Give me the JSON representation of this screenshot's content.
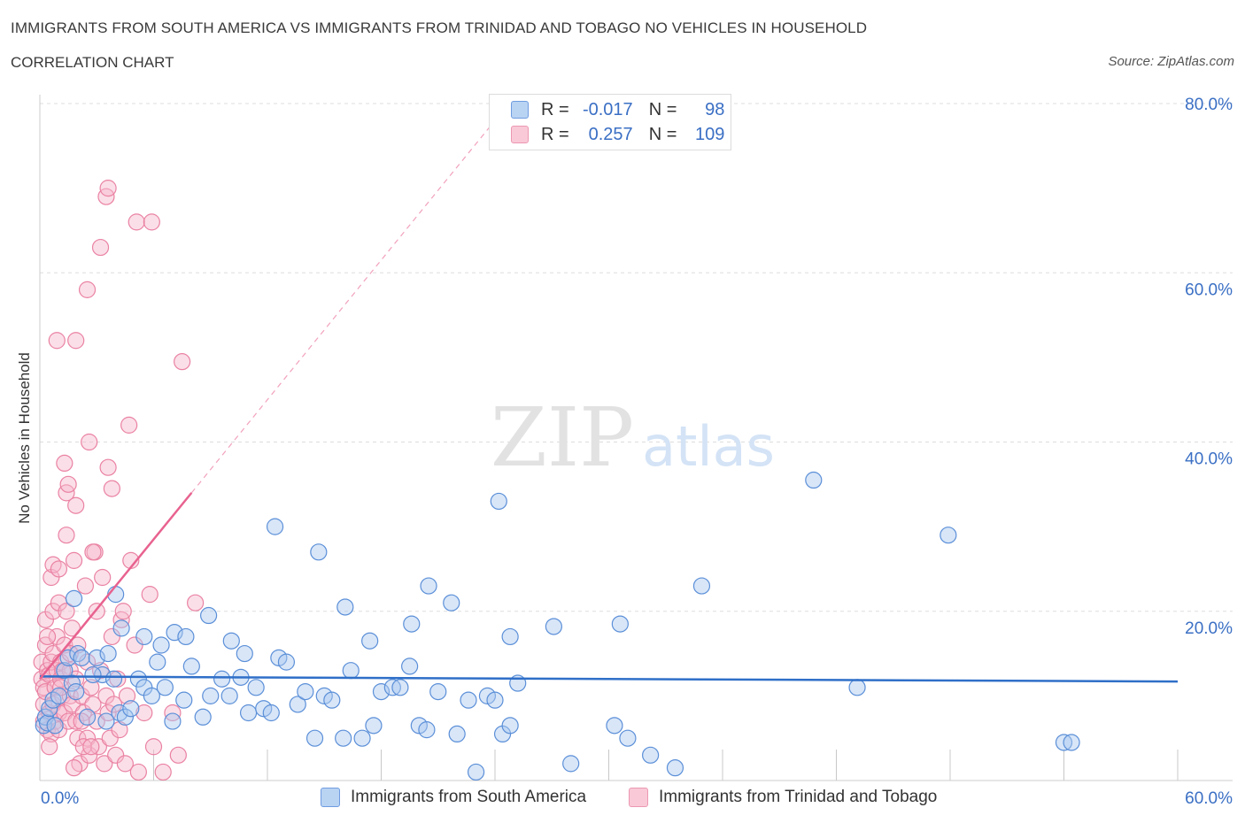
{
  "header": {
    "title": "IMMIGRANTS FROM SOUTH AMERICA VS IMMIGRANTS FROM TRINIDAD AND TOBAGO NO VEHICLES IN HOUSEHOLD",
    "subtitle": "CORRELATION CHART",
    "source": "Source: ZipAtlas.com"
  },
  "watermark": {
    "zip": "ZIP",
    "atlas": "atlas"
  },
  "colors": {
    "blue_fill": "#a9c8f0",
    "blue_stroke": "#5b8fd8",
    "blue_line": "#2f6fc8",
    "pink_fill": "#f6b8cb",
    "pink_stroke": "#ea82a3",
    "pink_line": "#e8628f",
    "axis_text": "#3a6fc4",
    "grid": "#dddddd"
  },
  "legend_top": {
    "rows": [
      {
        "series": "blue",
        "r_label": "R =",
        "r_value": "-0.017",
        "n_label": "N =",
        "n_value": "98"
      },
      {
        "series": "pink",
        "r_label": "R =",
        "r_value": "0.257",
        "n_label": "N =",
        "n_value": "109"
      }
    ]
  },
  "legend_bottom": {
    "items": [
      {
        "series": "blue",
        "label": "Immigrants from South America"
      },
      {
        "series": "pink",
        "label": "Immigrants from Trinidad and Tobago"
      }
    ]
  },
  "chart_data": {
    "type": "scatter",
    "title": "IMMIGRANTS FROM SOUTH AMERICA VS IMMIGRANTS FROM TRINIDAD AND TOBAGO NO VEHICLES IN HOUSEHOLD",
    "xlabel": "",
    "ylabel": "No Vehicles in Household",
    "xlim": [
      0,
      60
    ],
    "ylim": [
      0,
      80
    ],
    "x_tick_labels": [
      "0.0%",
      "60.0%"
    ],
    "y_ticks": [
      20,
      40,
      60,
      80
    ],
    "y_tick_labels": [
      "20.0%",
      "40.0%",
      "60.0%",
      "80.0%"
    ],
    "series": [
      {
        "name": "Immigrants from South America",
        "color": "blue",
        "trend": {
          "x": [
            0,
            60
          ],
          "y": [
            12.3,
            11.7
          ],
          "style": "solid"
        },
        "points": [
          [
            0.2,
            6.5
          ],
          [
            0.3,
            7.5
          ],
          [
            0.4,
            6.8
          ],
          [
            0.5,
            8.5
          ],
          [
            0.7,
            9.5
          ],
          [
            1,
            10
          ],
          [
            1.3,
            13
          ],
          [
            1.5,
            14.5
          ],
          [
            1.7,
            11.5
          ],
          [
            2,
            15
          ],
          [
            2.2,
            14.5
          ],
          [
            2.5,
            7.5
          ],
          [
            3,
            14.5
          ],
          [
            3.3,
            12.5
          ],
          [
            3.6,
            15
          ],
          [
            3.9,
            12
          ],
          [
            4.2,
            8
          ],
          [
            4.5,
            7.5
          ],
          [
            4.8,
            8.5
          ],
          [
            5.2,
            12
          ],
          [
            5.5,
            11
          ],
          [
            5.9,
            10
          ],
          [
            6.2,
            14
          ],
          [
            6.6,
            11
          ],
          [
            7,
            7
          ],
          [
            7.6,
            9.5
          ],
          [
            8,
            13.5
          ],
          [
            8.6,
            7.5
          ],
          [
            9,
            10
          ],
          [
            9.6,
            12
          ],
          [
            10,
            10
          ],
          [
            10.6,
            12.2
          ],
          [
            11,
            8
          ],
          [
            11.4,
            11
          ],
          [
            11.8,
            8.5
          ],
          [
            12.2,
            8
          ],
          [
            12.6,
            14.5
          ],
          [
            13,
            14
          ],
          [
            13.6,
            9
          ],
          [
            14,
            10.5
          ],
          [
            14.5,
            5
          ],
          [
            15,
            10
          ],
          [
            15.4,
            9.5
          ],
          [
            16,
            5
          ],
          [
            16.4,
            13
          ],
          [
            17,
            5
          ],
          [
            17.6,
            6.5
          ],
          [
            18,
            10.5
          ],
          [
            18.6,
            11
          ],
          [
            19,
            11
          ],
          [
            19.5,
            13.5
          ],
          [
            20,
            6.5
          ],
          [
            20.4,
            6
          ],
          [
            21,
            10.5
          ],
          [
            22,
            5.5
          ],
          [
            22.6,
            9.5
          ],
          [
            23,
            1
          ],
          [
            23.6,
            10
          ],
          [
            24,
            9.5
          ],
          [
            24.4,
            5.5
          ],
          [
            24.8,
            6.5
          ],
          [
            25.2,
            11.5
          ],
          [
            27.1,
            18.2
          ],
          [
            28,
            2
          ],
          [
            30.3,
            6.5
          ],
          [
            31,
            5
          ],
          [
            32.2,
            3
          ],
          [
            33.5,
            1.5
          ],
          [
            34.9,
            23
          ],
          [
            40.8,
            35.5
          ],
          [
            43.1,
            11
          ],
          [
            47.9,
            29
          ],
          [
            54,
            4.5
          ],
          [
            54.4,
            4.5
          ],
          [
            1.8,
            21.5
          ],
          [
            4,
            22
          ],
          [
            4.3,
            18
          ],
          [
            5.5,
            17
          ],
          [
            6.4,
            16
          ],
          [
            7.1,
            17.5
          ],
          [
            7.7,
            17
          ],
          [
            8.9,
            19.5
          ],
          [
            10.1,
            16.5
          ],
          [
            10.8,
            15
          ],
          [
            12.4,
            30
          ],
          [
            14.7,
            27
          ],
          [
            16.1,
            20.5
          ],
          [
            17.4,
            16.5
          ],
          [
            19.6,
            18.5
          ],
          [
            20.5,
            23
          ],
          [
            21.7,
            21
          ],
          [
            24.2,
            33
          ],
          [
            24.8,
            17
          ],
          [
            30.6,
            18.5
          ],
          [
            1.9,
            10.5
          ],
          [
            0.8,
            6.5
          ],
          [
            2.8,
            12.5
          ],
          [
            3.5,
            7
          ]
        ]
      },
      {
        "name": "Immigrants from Trinidad and Tobago",
        "color": "pink",
        "trend": {
          "x": [
            0,
            8
          ],
          "y": [
            12,
            34
          ],
          "style": "solid",
          "extended": {
            "x": [
              8,
              24
            ],
            "y": [
              34,
              78
            ]
          }
        },
        "points": [
          [
            0.1,
            14
          ],
          [
            0.1,
            12
          ],
          [
            0.2,
            11
          ],
          [
            0.2,
            9
          ],
          [
            0.2,
            7
          ],
          [
            0.3,
            10.5
          ],
          [
            0.3,
            16
          ],
          [
            0.3,
            19
          ],
          [
            0.4,
            13
          ],
          [
            0.4,
            6
          ],
          [
            0.5,
            8
          ],
          [
            0.5,
            12.5
          ],
          [
            0.6,
            24
          ],
          [
            0.6,
            14
          ],
          [
            0.6,
            5.5
          ],
          [
            0.7,
            20
          ],
          [
            0.7,
            9
          ],
          [
            0.7,
            15
          ],
          [
            0.8,
            11
          ],
          [
            0.8,
            7
          ],
          [
            0.9,
            17
          ],
          [
            0.9,
            13
          ],
          [
            1,
            21
          ],
          [
            1,
            8
          ],
          [
            1,
            6
          ],
          [
            1.1,
            12
          ],
          [
            1.1,
            14
          ],
          [
            1.2,
            10
          ],
          [
            1.3,
            8
          ],
          [
            1.3,
            16
          ],
          [
            1.4,
            29
          ],
          [
            1.4,
            20
          ],
          [
            1.5,
            7
          ],
          [
            1.6,
            13
          ],
          [
            1.6,
            10
          ],
          [
            1.7,
            18
          ],
          [
            1.7,
            9
          ],
          [
            1.8,
            26
          ],
          [
            1.9,
            12
          ],
          [
            1.9,
            7
          ],
          [
            2,
            16
          ],
          [
            2,
            5
          ],
          [
            2.1,
            2
          ],
          [
            2.2,
            10
          ],
          [
            2.3,
            8
          ],
          [
            2.4,
            23
          ],
          [
            2.5,
            14
          ],
          [
            2.5,
            5
          ],
          [
            2.6,
            3
          ],
          [
            2.7,
            11
          ],
          [
            2.8,
            9
          ],
          [
            2.9,
            27
          ],
          [
            3,
            20
          ],
          [
            3,
            7
          ],
          [
            3.1,
            4
          ],
          [
            3.2,
            13
          ],
          [
            3.3,
            24
          ],
          [
            3.4,
            2
          ],
          [
            3.5,
            10
          ],
          [
            3.6,
            8
          ],
          [
            3.7,
            5
          ],
          [
            3.8,
            17
          ],
          [
            3.9,
            9
          ],
          [
            4,
            3
          ],
          [
            4.1,
            12
          ],
          [
            4.2,
            6
          ],
          [
            4.3,
            19
          ],
          [
            4.5,
            2
          ],
          [
            4.6,
            10
          ],
          [
            4.8,
            26
          ],
          [
            5,
            16
          ],
          [
            5.2,
            1
          ],
          [
            5.5,
            8
          ],
          [
            5.8,
            22
          ],
          [
            6,
            4
          ],
          [
            6.5,
            1
          ],
          [
            7,
            8
          ],
          [
            7.3,
            3
          ],
          [
            8.2,
            21
          ],
          [
            1.2,
            13
          ],
          [
            3.5,
            69
          ],
          [
            3.6,
            70
          ],
          [
            5.1,
            66
          ],
          [
            5.9,
            66
          ],
          [
            3.2,
            63
          ],
          [
            2.5,
            58
          ],
          [
            0.9,
            52
          ],
          [
            1.9,
            52
          ],
          [
            7.5,
            49.5
          ],
          [
            4.7,
            42
          ],
          [
            2.6,
            40
          ],
          [
            3.6,
            37
          ],
          [
            1.3,
            37.5
          ],
          [
            1.4,
            34
          ],
          [
            1.5,
            35
          ],
          [
            3.8,
            34.5
          ],
          [
            1.9,
            32.5
          ],
          [
            0.7,
            25.5
          ],
          [
            2.8,
            27
          ],
          [
            1,
            25
          ],
          [
            1.6,
            15
          ],
          [
            2.2,
            7
          ],
          [
            0.4,
            17
          ],
          [
            4.4,
            20
          ],
          [
            0.5,
            4
          ],
          [
            1.8,
            1.5
          ],
          [
            2.3,
            4
          ],
          [
            2.7,
            4
          ],
          [
            1.1,
            11
          ]
        ]
      }
    ]
  }
}
